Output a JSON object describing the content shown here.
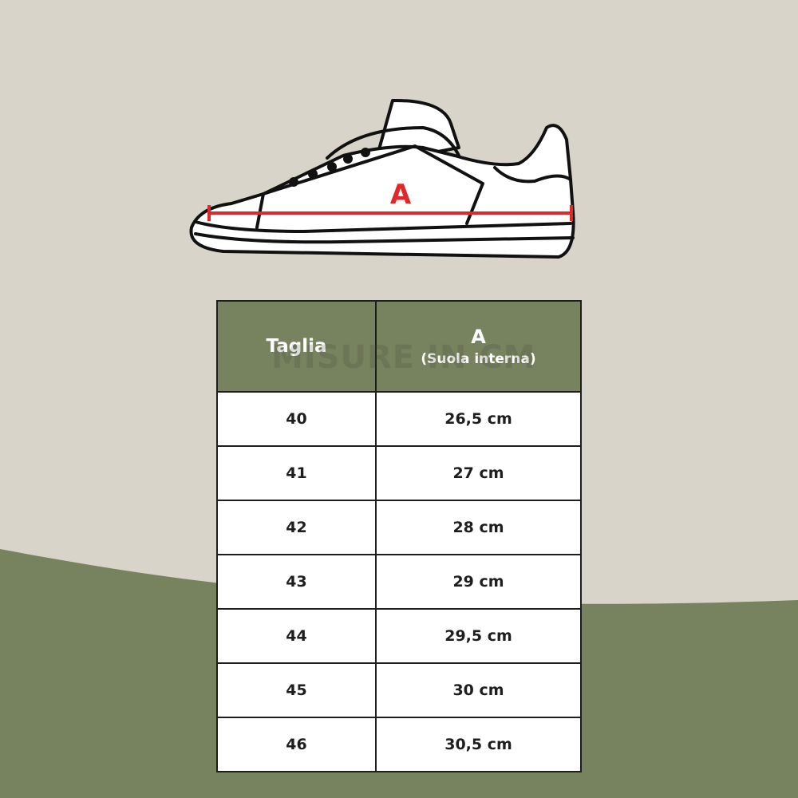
{
  "colors": {
    "background": "#d9d4c9",
    "green": "#77835f",
    "measure_line": "#e0282a"
  },
  "illustration": {
    "icon": "sneaker-side-icon",
    "measure_label": "A"
  },
  "watermark": "MISURE IN CM",
  "table": {
    "headers": {
      "size": "Taglia",
      "measure": "A",
      "measure_sub": "(Suola interna)"
    },
    "rows": [
      {
        "size": "40",
        "length": "26,5 cm"
      },
      {
        "size": "41",
        "length": "27 cm"
      },
      {
        "size": "42",
        "length": "28 cm"
      },
      {
        "size": "43",
        "length": "29 cm"
      },
      {
        "size": "44",
        "length": "29,5 cm"
      },
      {
        "size": "45",
        "length": "30 cm"
      },
      {
        "size": "46",
        "length": "30,5 cm"
      }
    ]
  }
}
